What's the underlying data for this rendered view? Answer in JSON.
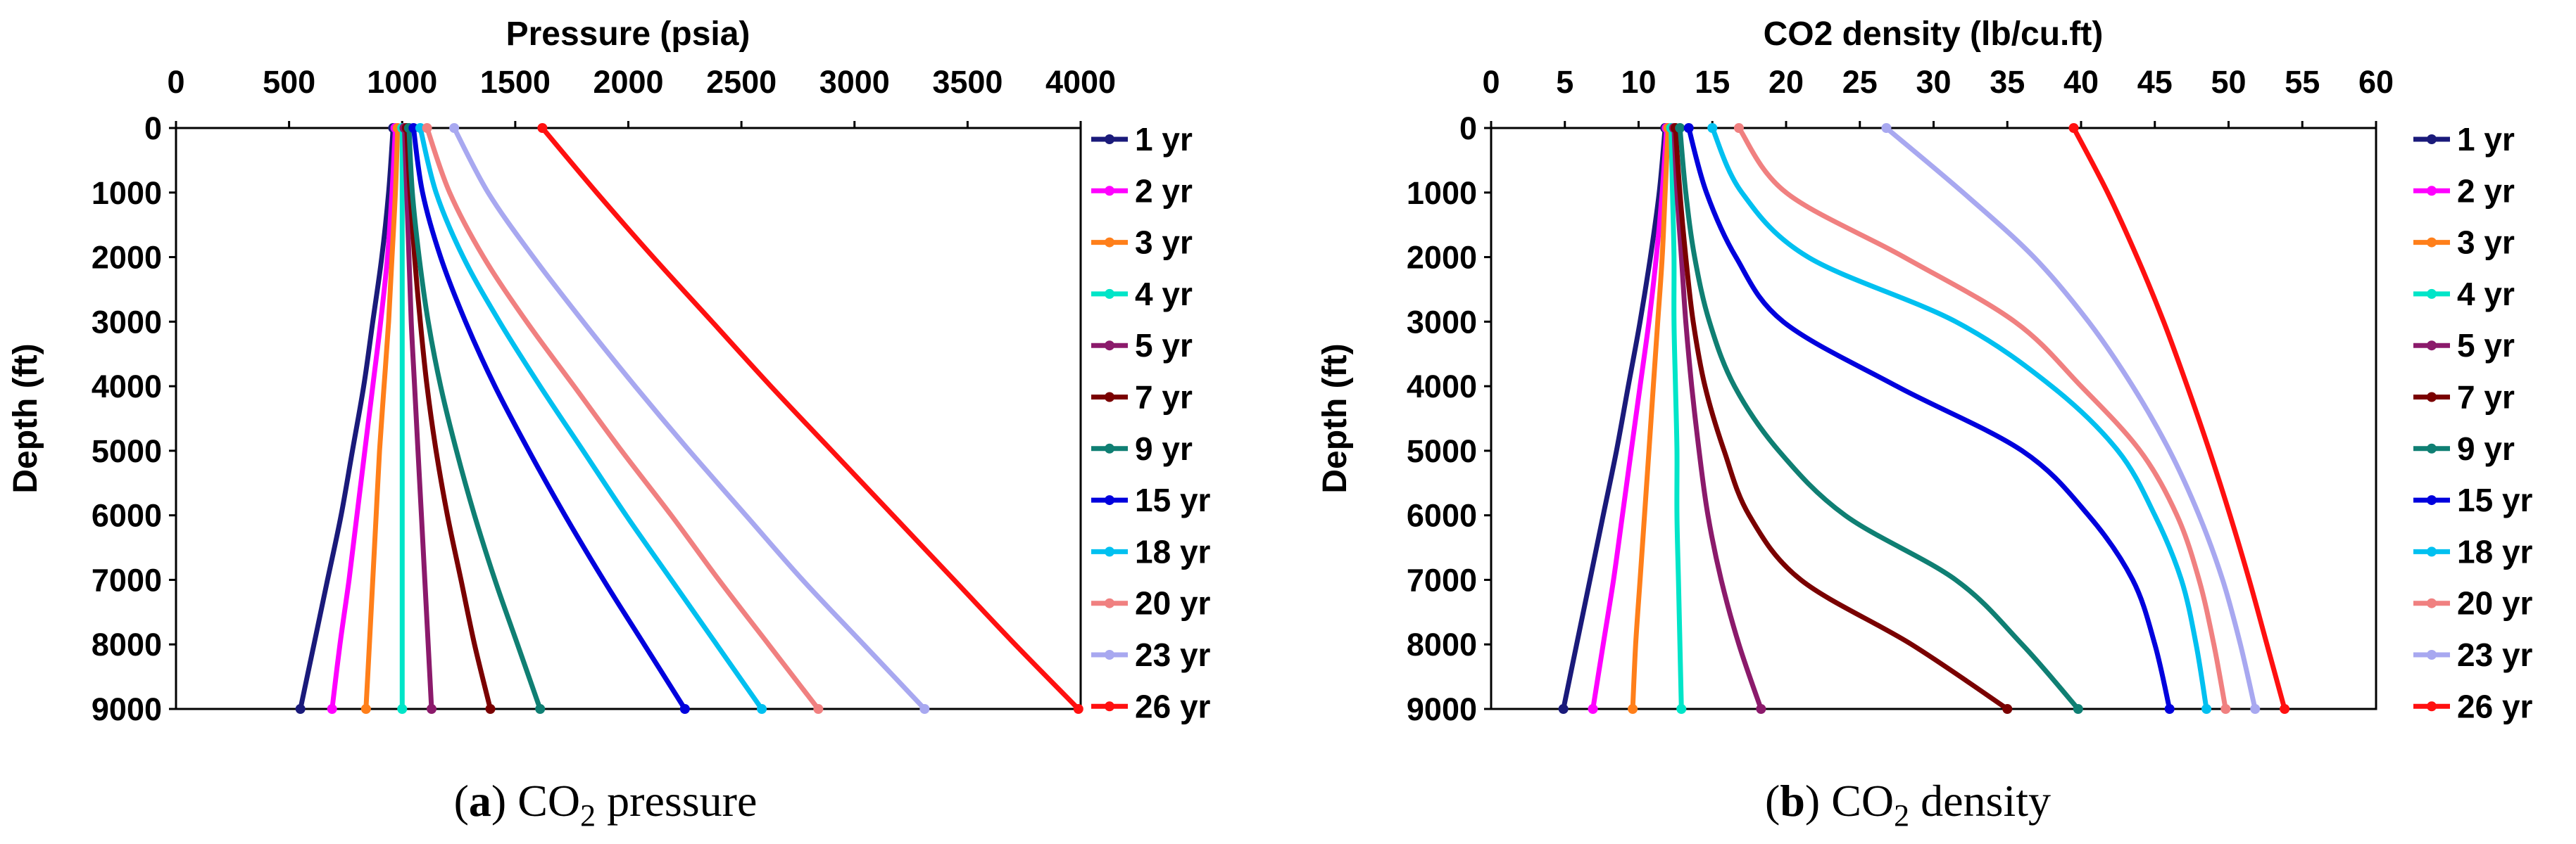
{
  "colors": {
    "1 yr": "#1a1a7a",
    "2 yr": "#ff00ff",
    "3 yr": "#ff7f1a",
    "4 yr": "#00e5c8",
    "5 yr": "#8b1a6b",
    "7 yr": "#7a0000",
    "9 yr": "#0f7f73",
    "15 yr": "#0000dd",
    "18 yr": "#00c0f0",
    "20 yr": "#f08080",
    "23 yr": "#a8a8f0",
    "26 yr": "#ff1010"
  },
  "legend_labels": [
    "1 yr",
    "2 yr",
    "3 yr",
    "4 yr",
    "5 yr",
    "7 yr",
    "9 yr",
    "15 yr",
    "18 yr",
    "20 yr",
    "23 yr",
    "26 yr"
  ],
  "captions": {
    "a": {
      "letter": "a",
      "prefix": "CO",
      "sub": "2",
      "suffix": " pressure"
    },
    "b": {
      "letter": "b",
      "prefix": "CO",
      "sub": "2",
      "suffix": " density"
    }
  },
  "chart_data": [
    {
      "id": "pressure",
      "type": "line",
      "title": "Pressure (psia)",
      "xlabel": "Pressure (psia)",
      "ylabel": "Depth (ft)",
      "xlim": [
        0,
        4000
      ],
      "ylim": [
        0,
        9000
      ],
      "y_inverted": true,
      "x_axis_position": "top",
      "xticks": [
        0,
        500,
        1000,
        1500,
        2000,
        2500,
        3000,
        3500,
        4000
      ],
      "yticks": [
        0,
        1000,
        2000,
        3000,
        4000,
        5000,
        6000,
        7000,
        8000,
        9000
      ],
      "grid": false,
      "legend": "right",
      "depth_points": [
        0,
        1000,
        2000,
        3000,
        4000,
        5000,
        6000,
        7000,
        8000,
        9000
      ],
      "series": [
        {
          "name": "1 yr",
          "values": [
            960,
            940,
            910,
            870,
            830,
            780,
            730,
            670,
            610,
            550
          ]
        },
        {
          "name": "2 yr",
          "values": [
            970,
            955,
            935,
            905,
            870,
            835,
            800,
            765,
            725,
            690
          ]
        },
        {
          "name": "3 yr",
          "values": [
            980,
            970,
            955,
            940,
            920,
            900,
            885,
            870,
            855,
            840
          ]
        },
        {
          "name": "4 yr",
          "values": [
            1000,
            1000,
            1000,
            1000,
            1000,
            1000,
            1000,
            1000,
            1000,
            1000
          ]
        },
        {
          "name": "5 yr",
          "values": [
            1010,
            1020,
            1030,
            1040,
            1055,
            1070,
            1085,
            1100,
            1115,
            1130
          ]
        },
        {
          "name": "7 yr",
          "values": [
            1020,
            1035,
            1055,
            1080,
            1110,
            1150,
            1200,
            1260,
            1320,
            1390
          ]
        },
        {
          "name": "9 yr",
          "values": [
            1030,
            1045,
            1075,
            1115,
            1170,
            1240,
            1320,
            1410,
            1510,
            1610
          ]
        },
        {
          "name": "15 yr",
          "values": [
            1050,
            1090,
            1170,
            1280,
            1410,
            1560,
            1720,
            1890,
            2070,
            2250
          ]
        },
        {
          "name": "18 yr",
          "values": [
            1080,
            1150,
            1270,
            1430,
            1610,
            1800,
            1990,
            2190,
            2390,
            2590
          ]
        },
        {
          "name": "20 yr",
          "values": [
            1110,
            1210,
            1360,
            1550,
            1760,
            1970,
            2190,
            2400,
            2620,
            2840
          ]
        },
        {
          "name": "23 yr",
          "values": [
            1230,
            1380,
            1580,
            1800,
            2030,
            2270,
            2520,
            2770,
            3040,
            3310
          ]
        },
        {
          "name": "26 yr",
          "values": [
            1620,
            1860,
            2110,
            2370,
            2630,
            2900,
            3170,
            3440,
            3710,
            3990
          ]
        }
      ]
    },
    {
      "id": "density",
      "type": "line",
      "title": "CO2 density (lb/cu.ft)",
      "xlabel": "CO2 density (lb/cu.ft)",
      "ylabel": "Depth (ft)",
      "xlim": [
        0,
        60
      ],
      "ylim": [
        0,
        9000
      ],
      "y_inverted": true,
      "x_axis_position": "top",
      "xticks": [
        0,
        5,
        10,
        15,
        20,
        25,
        30,
        35,
        40,
        45,
        50,
        55,
        60
      ],
      "yticks": [
        0,
        1000,
        2000,
        3000,
        4000,
        5000,
        6000,
        7000,
        8000,
        9000
      ],
      "grid": false,
      "legend": "right",
      "depth_points": [
        0,
        1000,
        2000,
        3000,
        4000,
        5000,
        6000,
        7000,
        8000,
        9000
      ],
      "series": [
        {
          "name": "1 yr",
          "values": [
            11.8,
            11.4,
            10.8,
            10.1,
            9.3,
            8.5,
            7.6,
            6.7,
            5.8,
            4.9
          ]
        },
        {
          "name": "2 yr",
          "values": [
            11.9,
            11.6,
            11.2,
            10.7,
            10.1,
            9.5,
            8.9,
            8.3,
            7.6,
            6.9
          ]
        },
        {
          "name": "3 yr",
          "values": [
            12.0,
            11.8,
            11.6,
            11.3,
            11.0,
            10.7,
            10.4,
            10.1,
            9.8,
            9.6
          ]
        },
        {
          "name": "4 yr",
          "values": [
            12.2,
            12.3,
            12.4,
            12.4,
            12.5,
            12.6,
            12.6,
            12.7,
            12.8,
            12.9
          ]
        },
        {
          "name": "5 yr",
          "values": [
            12.4,
            12.6,
            12.9,
            13.2,
            13.6,
            14.1,
            14.7,
            15.6,
            16.8,
            18.3
          ]
        },
        {
          "name": "7 yr",
          "values": [
            12.5,
            12.8,
            13.2,
            13.7,
            14.5,
            15.8,
            17.5,
            21.0,
            28.5,
            35.0
          ]
        },
        {
          "name": "9 yr",
          "values": [
            12.8,
            13.2,
            13.8,
            14.8,
            16.5,
            19.5,
            24.0,
            31.5,
            36.0,
            39.8
          ]
        },
        {
          "name": "15 yr",
          "values": [
            13.4,
            14.6,
            16.6,
            19.8,
            27.5,
            36.0,
            40.5,
            43.5,
            45.0,
            46.0
          ]
        },
        {
          "name": "18 yr",
          "values": [
            15.0,
            17.0,
            21.5,
            31.5,
            38.0,
            42.5,
            45.0,
            46.8,
            47.8,
            48.5
          ]
        },
        {
          "name": "20 yr",
          "values": [
            16.8,
            20.0,
            28.0,
            35.5,
            40.0,
            44.0,
            46.5,
            48.0,
            49.0,
            49.8
          ]
        },
        {
          "name": "23 yr",
          "values": [
            26.8,
            32.0,
            36.8,
            40.5,
            43.5,
            46.0,
            48.0,
            49.6,
            50.8,
            51.8
          ]
        },
        {
          "name": "26 yr",
          "values": [
            39.5,
            41.8,
            43.8,
            45.6,
            47.2,
            48.7,
            50.1,
            51.4,
            52.6,
            53.8
          ]
        }
      ]
    }
  ]
}
